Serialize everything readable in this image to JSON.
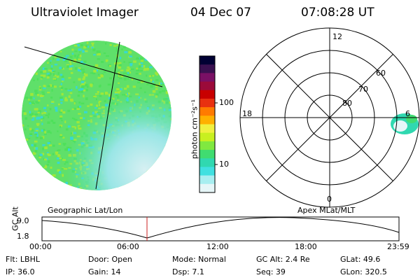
{
  "header": {
    "title": "Ultraviolet Imager",
    "date": "04 Dec 07",
    "time": "07:08:28 UT"
  },
  "colorbar": {
    "label": "photon cm⁻²s⁻¹",
    "ticks": [
      "100",
      "10"
    ],
    "colors": [
      "#000033",
      "#3a1050",
      "#7a1065",
      "#9b0a3a",
      "#c80000",
      "#e83010",
      "#ff7a00",
      "#ffb000",
      "#f0f040",
      "#c8f020",
      "#80e840",
      "#40dc70",
      "#30d8b0",
      "#40e0e0",
      "#a8eef0",
      "#e6f6f8"
    ]
  },
  "polar": {
    "top": "12",
    "bottom": "0",
    "left": "18",
    "right": "6",
    "lat_labels": [
      "60",
      "70",
      "80"
    ]
  },
  "timeline": {
    "left_label": "Geographic Lat/Lon",
    "right_label": "Apex MLat/MLT",
    "y_axis": "GC Alt",
    "y_ticks": [
      "9.0",
      "1.8"
    ],
    "x_ticks": [
      "00:00",
      "06:00",
      "12:00",
      "18:00",
      "23:59"
    ],
    "marker_color": "#cc2222"
  },
  "info": {
    "flt": "Flt: LBHL",
    "door": "Door: Open",
    "mode": "Mode: Normal",
    "gc_alt": "GC Alt: 2.4 Re",
    "glat": "GLat:  49.6",
    "ip": "IP: 36.0",
    "gain": "Gain: 14",
    "dsp": "Dsp:     7.1",
    "seq": "Seq: 39",
    "glon": "GLon: 320.5"
  },
  "image_colors": {
    "primary": "#4ee05a",
    "secondary": "#9ee83a",
    "cyan": "#38d8d0",
    "pale": "#d8f2f2"
  }
}
